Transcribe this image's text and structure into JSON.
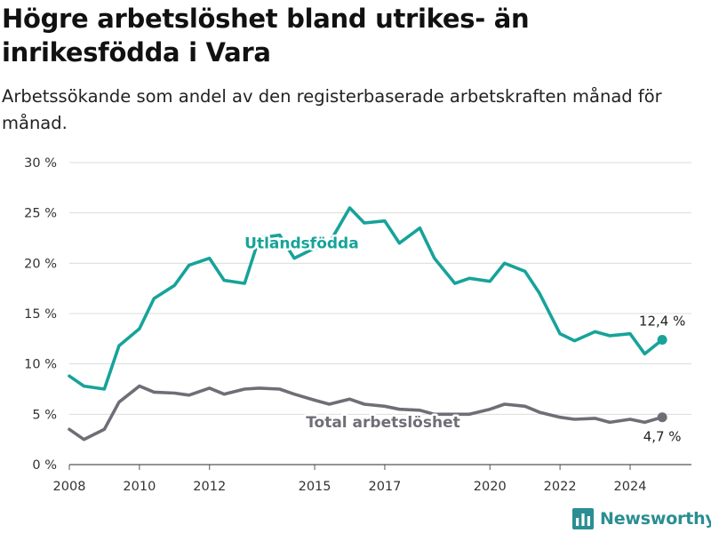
{
  "title": "Högre arbetslöshet bland utrikes- än inrikesfödda i Vara",
  "subtitle": "Arbetssökande som andel av den registerbaserade arbetskraften månad för månad.",
  "brand": {
    "name": "Newsworthy",
    "icon": "bar-chart-logo-icon",
    "color": "#2a8e93"
  },
  "chart_data": {
    "type": "line",
    "grid": "horizontal",
    "ylim": [
      0,
      30
    ],
    "y_ticks": [
      "0 %",
      "5 %",
      "10 %",
      "15 %",
      "20 %",
      "25 %",
      "30 %"
    ],
    "x_ticks": [
      "2008",
      "2010",
      "2012",
      "2015",
      "2017",
      "2020",
      "2022",
      "2024"
    ],
    "series": [
      {
        "name": "Utlandsfödda",
        "color": "#16a39a",
        "end_label": "12,4 %",
        "points": [
          [
            "2008-01",
            8.8
          ],
          [
            "2008-06",
            7.8
          ],
          [
            "2009-01",
            7.5
          ],
          [
            "2009-06",
            11.8
          ],
          [
            "2010-01",
            13.5
          ],
          [
            "2010-06",
            16.5
          ],
          [
            "2011-01",
            17.8
          ],
          [
            "2011-06",
            19.8
          ],
          [
            "2012-01",
            20.5
          ],
          [
            "2012-06",
            18.3
          ],
          [
            "2013-01",
            18.0
          ],
          [
            "2013-06",
            22.5
          ],
          [
            "2014-01",
            22.8
          ],
          [
            "2014-06",
            20.5
          ],
          [
            "2015-01",
            21.5
          ],
          [
            "2015-06",
            22.0
          ],
          [
            "2016-01",
            25.5
          ],
          [
            "2016-06",
            24.0
          ],
          [
            "2017-01",
            24.2
          ],
          [
            "2017-06",
            22.0
          ],
          [
            "2018-01",
            23.5
          ],
          [
            "2018-06",
            20.5
          ],
          [
            "2019-01",
            18.0
          ],
          [
            "2019-06",
            18.5
          ],
          [
            "2020-01",
            18.2
          ],
          [
            "2020-06",
            20.0
          ],
          [
            "2021-01",
            19.2
          ],
          [
            "2021-06",
            17.0
          ],
          [
            "2022-01",
            13.0
          ],
          [
            "2022-06",
            12.3
          ],
          [
            "2023-01",
            13.2
          ],
          [
            "2023-06",
            12.8
          ],
          [
            "2024-01",
            13.0
          ],
          [
            "2024-06",
            11.0
          ],
          [
            "2024-12",
            12.4
          ]
        ]
      },
      {
        "name": "Total arbetslöshet",
        "color": "#6e6e77",
        "end_label": "4,7 %",
        "points": [
          [
            "2008-01",
            3.5
          ],
          [
            "2008-06",
            2.5
          ],
          [
            "2009-01",
            3.5
          ],
          [
            "2009-06",
            6.2
          ],
          [
            "2010-01",
            7.8
          ],
          [
            "2010-06",
            7.2
          ],
          [
            "2011-01",
            7.1
          ],
          [
            "2011-06",
            6.9
          ],
          [
            "2012-01",
            7.6
          ],
          [
            "2012-06",
            7.0
          ],
          [
            "2013-01",
            7.5
          ],
          [
            "2013-06",
            7.6
          ],
          [
            "2014-01",
            7.5
          ],
          [
            "2014-06",
            7.0
          ],
          [
            "2015-01",
            6.4
          ],
          [
            "2015-06",
            6.0
          ],
          [
            "2016-01",
            6.5
          ],
          [
            "2016-06",
            6.0
          ],
          [
            "2017-01",
            5.8
          ],
          [
            "2017-06",
            5.5
          ],
          [
            "2018-01",
            5.4
          ],
          [
            "2018-06",
            5.0
          ],
          [
            "2019-01",
            5.0
          ],
          [
            "2019-06",
            5.0
          ],
          [
            "2020-01",
            5.5
          ],
          [
            "2020-06",
            6.0
          ],
          [
            "2021-01",
            5.8
          ],
          [
            "2021-06",
            5.2
          ],
          [
            "2022-01",
            4.7
          ],
          [
            "2022-06",
            4.5
          ],
          [
            "2023-01",
            4.6
          ],
          [
            "2023-06",
            4.2
          ],
          [
            "2024-01",
            4.5
          ],
          [
            "2024-06",
            4.2
          ],
          [
            "2024-12",
            4.7
          ]
        ]
      }
    ]
  }
}
